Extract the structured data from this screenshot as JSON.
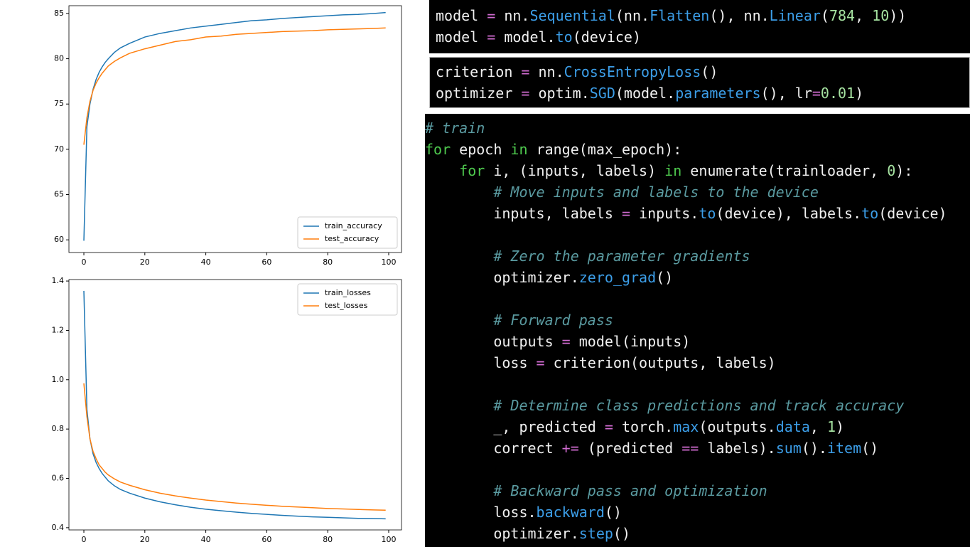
{
  "chart_data": [
    {
      "type": "line",
      "legend": "lower right",
      "xlim": [
        -4.9,
        104.2
      ],
      "xticks": [
        0,
        20,
        40,
        60,
        80,
        100
      ],
      "ylim": [
        58.6,
        85.86
      ],
      "yticks": [
        60,
        65,
        70,
        75,
        80,
        85
      ],
      "x": [
        0,
        1,
        2,
        3,
        4,
        5,
        6,
        7,
        8,
        10,
        12,
        15,
        20,
        25,
        30,
        35,
        40,
        45,
        50,
        55,
        60,
        65,
        70,
        75,
        80,
        85,
        90,
        95,
        99
      ],
      "series": [
        {
          "name": "train_accuracy",
          "color": "#1f77b4",
          "values": [
            59.9,
            72.5,
            75.0,
            76.6,
            77.7,
            78.5,
            79.1,
            79.6,
            80.0,
            80.7,
            81.2,
            81.7,
            82.4,
            82.8,
            83.1,
            83.4,
            83.6,
            83.8,
            84.0,
            84.2,
            84.3,
            84.45,
            84.55,
            84.65,
            84.75,
            84.85,
            84.9,
            85.0,
            85.1
          ]
        },
        {
          "name": "test_accuracy",
          "color": "#ff7f0e",
          "values": [
            70.5,
            73.5,
            75.3,
            76.5,
            77.3,
            77.9,
            78.4,
            78.8,
            79.2,
            79.7,
            80.1,
            80.6,
            81.1,
            81.5,
            81.9,
            82.1,
            82.4,
            82.5,
            82.7,
            82.8,
            82.9,
            83.0,
            83.05,
            83.1,
            83.2,
            83.25,
            83.3,
            83.35,
            83.4
          ]
        }
      ]
    },
    {
      "type": "line",
      "legend": "upper right",
      "xlim": [
        -4.9,
        104.2
      ],
      "xticks": [
        0,
        20,
        40,
        60,
        80,
        100
      ],
      "ylim": [
        0.391,
        1.406
      ],
      "yticks": [
        0.4,
        0.6,
        0.8,
        {
          "value": 1,
          "label": "1.0"
        },
        1.2,
        1.4
      ],
      "x": [
        0,
        1,
        2,
        3,
        4,
        5,
        6,
        7,
        8,
        10,
        12,
        15,
        20,
        25,
        30,
        35,
        40,
        45,
        50,
        55,
        60,
        65,
        70,
        75,
        80,
        85,
        90,
        95,
        99
      ],
      "series": [
        {
          "name": "train_losses",
          "color": "#1f77b4",
          "values": [
            1.36,
            0.88,
            0.76,
            0.7,
            0.665,
            0.64,
            0.62,
            0.605,
            0.59,
            0.57,
            0.555,
            0.54,
            0.52,
            0.505,
            0.493,
            0.483,
            0.475,
            0.469,
            0.463,
            0.458,
            0.454,
            0.45,
            0.447,
            0.444,
            0.442,
            0.44,
            0.438,
            0.437,
            0.436
          ]
        },
        {
          "name": "test_losses",
          "color": "#ff7f0e",
          "values": [
            0.985,
            0.85,
            0.76,
            0.71,
            0.68,
            0.655,
            0.64,
            0.625,
            0.614,
            0.598,
            0.585,
            0.572,
            0.554,
            0.54,
            0.529,
            0.52,
            0.512,
            0.506,
            0.5,
            0.495,
            0.491,
            0.487,
            0.484,
            0.481,
            0.478,
            0.476,
            0.474,
            0.472,
            0.471
          ]
        }
      ]
    }
  ],
  "code_blocks": [
    {
      "groups": [
        [
          [
            {
              "text": "model ",
              "color": "#f0f0f0"
            },
            {
              "text": "=",
              "color": "#d16bd1"
            },
            {
              "text": " nn.",
              "color": "#f0f0f0"
            },
            {
              "text": "Sequential",
              "color": "#3c9ee8"
            },
            {
              "text": "(nn.",
              "color": "#f0f0f0"
            },
            {
              "text": "Flatten",
              "color": "#3c9ee8"
            },
            {
              "text": "(), nn.",
              "color": "#f0f0f0"
            },
            {
              "text": "Linear",
              "color": "#3c9ee8"
            },
            {
              "text": "(",
              "color": "#f0f0f0"
            },
            {
              "text": "784",
              "color": "#a6e3a1"
            },
            {
              "text": ", ",
              "color": "#f0f0f0"
            },
            {
              "text": "10",
              "color": "#a6e3a1"
            },
            {
              "text": "))",
              "color": "#f0f0f0"
            }
          ],
          [
            {
              "text": "model ",
              "color": "#f0f0f0"
            },
            {
              "text": "=",
              "color": "#d16bd1"
            },
            {
              "text": " model.",
              "color": "#f0f0f0"
            },
            {
              "text": "to",
              "color": "#3c9ee8"
            },
            {
              "text": "(device)",
              "color": "#f0f0f0"
            }
          ]
        ]
      ]
    },
    {
      "groups": [
        [
          [
            {
              "text": "criterion ",
              "color": "#f0f0f0"
            },
            {
              "text": "=",
              "color": "#d16bd1"
            },
            {
              "text": " nn.",
              "color": "#f0f0f0"
            },
            {
              "text": "CrossEntropyLoss",
              "color": "#3c9ee8"
            },
            {
              "text": "()",
              "color": "#f0f0f0"
            }
          ],
          [
            {
              "text": "optimizer ",
              "color": "#f0f0f0"
            },
            {
              "text": "=",
              "color": "#d16bd1"
            },
            {
              "text": " optim.",
              "color": "#f0f0f0"
            },
            {
              "text": "SGD",
              "color": "#3c9ee8"
            },
            {
              "text": "(model.",
              "color": "#f0f0f0"
            },
            {
              "text": "parameters",
              "color": "#3c9ee8"
            },
            {
              "text": "(), lr",
              "color": "#f0f0f0"
            },
            {
              "text": "=",
              "color": "#d16bd1"
            },
            {
              "text": "0.01",
              "color": "#a6e3a1"
            },
            {
              "text": ")",
              "color": "#f0f0f0"
            }
          ]
        ]
      ]
    },
    {
      "groups": [
        [
          [
            {
              "text": "# train",
              "color": "#5a9aa0",
              "italic": true
            }
          ],
          [
            {
              "text": "for",
              "color": "#4ec94e"
            },
            {
              "text": " epoch ",
              "color": "#f0f0f0"
            },
            {
              "text": "in",
              "color": "#4ec94e"
            },
            {
              "text": " range(max_epoch):",
              "color": "#f0f0f0"
            }
          ],
          [
            {
              "text": "    for",
              "color": "#4ec94e"
            },
            {
              "text": " i, (inputs, labels) ",
              "color": "#f0f0f0"
            },
            {
              "text": "in",
              "color": "#4ec94e"
            },
            {
              "text": " enumerate(trainloader, ",
              "color": "#f0f0f0"
            },
            {
              "text": "0",
              "color": "#a6e3a1"
            },
            {
              "text": "):",
              "color": "#f0f0f0"
            }
          ],
          [
            {
              "text": "        # Move inputs and labels to the device",
              "color": "#5a9aa0",
              "italic": true
            }
          ],
          [
            {
              "text": "        inputs, labels ",
              "color": "#f0f0f0"
            },
            {
              "text": "=",
              "color": "#d16bd1"
            },
            {
              "text": " inputs.",
              "color": "#f0f0f0"
            },
            {
              "text": "to",
              "color": "#3c9ee8"
            },
            {
              "text": "(device), labels.",
              "color": "#f0f0f0"
            },
            {
              "text": "to",
              "color": "#3c9ee8"
            },
            {
              "text": "(device)",
              "color": "#f0f0f0"
            }
          ]
        ],
        [
          [
            {
              "text": "        # Zero the parameter gradients",
              "color": "#5a9aa0",
              "italic": true
            }
          ],
          [
            {
              "text": "        optimizer.",
              "color": "#f0f0f0"
            },
            {
              "text": "zero_grad",
              "color": "#3c9ee8"
            },
            {
              "text": "()",
              "color": "#f0f0f0"
            }
          ]
        ],
        [
          [
            {
              "text": "        # Forward pass",
              "color": "#5a9aa0",
              "italic": true
            }
          ],
          [
            {
              "text": "        outputs ",
              "color": "#f0f0f0"
            },
            {
              "text": "=",
              "color": "#d16bd1"
            },
            {
              "text": " model(inputs)",
              "color": "#f0f0f0"
            }
          ],
          [
            {
              "text": "        loss ",
              "color": "#f0f0f0"
            },
            {
              "text": "=",
              "color": "#d16bd1"
            },
            {
              "text": " criterion(outputs, labels)",
              "color": "#f0f0f0"
            }
          ]
        ],
        [
          [
            {
              "text": "        # Determine class predictions and track accuracy",
              "color": "#5a9aa0",
              "italic": true
            }
          ],
          [
            {
              "text": "        _, predicted ",
              "color": "#f0f0f0"
            },
            {
              "text": "=",
              "color": "#d16bd1"
            },
            {
              "text": " torch.",
              "color": "#f0f0f0"
            },
            {
              "text": "max",
              "color": "#3c9ee8"
            },
            {
              "text": "(outputs.",
              "color": "#f0f0f0"
            },
            {
              "text": "data",
              "color": "#3c9ee8"
            },
            {
              "text": ", ",
              "color": "#f0f0f0"
            },
            {
              "text": "1",
              "color": "#a6e3a1"
            },
            {
              "text": ")",
              "color": "#f0f0f0"
            }
          ],
          [
            {
              "text": "        correct ",
              "color": "#f0f0f0"
            },
            {
              "text": "+=",
              "color": "#d16bd1"
            },
            {
              "text": " (predicted ",
              "color": "#f0f0f0"
            },
            {
              "text": "==",
              "color": "#d16bd1"
            },
            {
              "text": " labels).",
              "color": "#f0f0f0"
            },
            {
              "text": "sum",
              "color": "#3c9ee8"
            },
            {
              "text": "().",
              "color": "#f0f0f0"
            },
            {
              "text": "item",
              "color": "#3c9ee8"
            },
            {
              "text": "()",
              "color": "#f0f0f0"
            }
          ]
        ],
        [
          [
            {
              "text": "        # Backward pass and optimization",
              "color": "#5a9aa0",
              "italic": true
            }
          ],
          [
            {
              "text": "        loss.",
              "color": "#f0f0f0"
            },
            {
              "text": "backward",
              "color": "#3c9ee8"
            },
            {
              "text": "()",
              "color": "#f0f0f0"
            }
          ],
          [
            {
              "text": "        optimizer.",
              "color": "#f0f0f0"
            },
            {
              "text": "step",
              "color": "#3c9ee8"
            },
            {
              "text": "()",
              "color": "#f0f0f0"
            }
          ]
        ]
      ]
    }
  ]
}
